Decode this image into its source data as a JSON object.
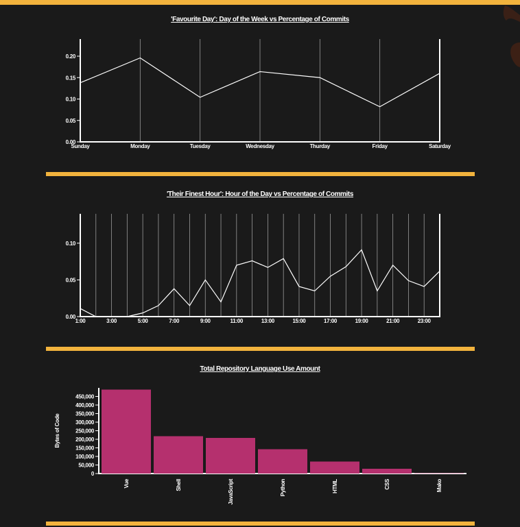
{
  "colors": {
    "accent": "#f2b33d",
    "background": "#1a1a1a",
    "bar": "#b5306e",
    "line": "#ffffff"
  },
  "chart_data": [
    {
      "type": "line",
      "title": "'Favourite Day': Day of the Week vs Percentage of Commits",
      "xlabel": "",
      "ylabel": "",
      "categories": [
        "Sunday",
        "Monday",
        "Tuesday",
        "Wednesday",
        "Thurday",
        "Friday",
        "Saturday"
      ],
      "x_ticks_shown": [
        "Sunday",
        "Monday",
        "Tuesday",
        "Wednesday",
        "Thurday",
        "Friday",
        "Saturday"
      ],
      "values": [
        0.138,
        0.196,
        0.104,
        0.164,
        0.15,
        0.082,
        0.16
      ],
      "ylim": [
        0,
        0.24
      ],
      "y_ticks": [
        "0.00",
        "0.05",
        "0.10",
        "0.15",
        "0.20"
      ],
      "grid": "vertical"
    },
    {
      "type": "line",
      "title": "'Their Finest Hour': Hour of the Day vs Percentage of Commits",
      "xlabel": "",
      "ylabel": "",
      "categories": [
        "1:00",
        "2:00",
        "3:00",
        "4:00",
        "5:00",
        "6:00",
        "7:00",
        "8:00",
        "9:00",
        "10:00",
        "11:00",
        "12:00",
        "13:00",
        "14:00",
        "15:00",
        "16:00",
        "17:00",
        "18:00",
        "19:00",
        "20:00",
        "21:00",
        "22:00",
        "23:00",
        "24:00"
      ],
      "x_ticks_shown": [
        "1:00",
        "3:00",
        "5:00",
        "7:00",
        "9:00",
        "11:00",
        "13:00",
        "15:00",
        "17:00",
        "19:00",
        "21:00",
        "23:00"
      ],
      "values": [
        0.011,
        0.0,
        0.0,
        0.0,
        0.005,
        0.015,
        0.038,
        0.015,
        0.05,
        0.02,
        0.07,
        0.076,
        0.067,
        0.079,
        0.041,
        0.035,
        0.055,
        0.068,
        0.091,
        0.035,
        0.07,
        0.049,
        0.041,
        0.062
      ],
      "ylim": [
        0,
        0.14
      ],
      "y_ticks": [
        "0.00",
        "0.05",
        "0.10"
      ],
      "grid": "vertical"
    },
    {
      "type": "bar",
      "title": "Total Repository Language Use Amount",
      "xlabel": "",
      "ylabel": "Bytes of Code",
      "categories": [
        "Vue",
        "Shell",
        "JavaScript",
        "Python",
        "HTML",
        "CSS",
        "Mako"
      ],
      "values": [
        490000,
        218000,
        208000,
        142000,
        70000,
        28000,
        2000
      ],
      "ylim": [
        0,
        500000
      ],
      "y_ticks": [
        "0",
        "50,000",
        "100,000",
        "150,000",
        "200,000",
        "250,000",
        "300,000",
        "350,000",
        "400,000",
        "450,000"
      ],
      "grid": "none"
    }
  ]
}
